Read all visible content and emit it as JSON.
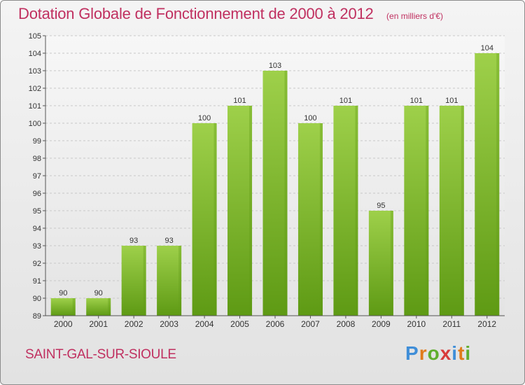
{
  "header": {
    "title": "Dotation Globale de Fonctionnement de 2000 à 2012",
    "subtitle": "(en milliers d'€)"
  },
  "footer": {
    "commune": "SAINT-GAL-SUR-SIOULE",
    "logo_text": "Proxiti",
    "logo_letters": [
      "P",
      "r",
      "o",
      "x",
      "i",
      "t",
      "i"
    ],
    "logo_colors": [
      "#3f8ed8",
      "#e07b1a",
      "#5fae2d",
      "#d83a3a",
      "#3f8ed8",
      "#e07b1a",
      "#5fae2d"
    ]
  },
  "colors": {
    "bar_light": "#9ed04a",
    "bar_dark": "#5e9a14",
    "grid": "#c8c8c8",
    "axis": "#555555",
    "accent": "#c03060"
  },
  "chart_data": {
    "type": "bar",
    "title": "Dotation Globale de Fonctionnement de 2000 à 2012",
    "subtitle": "(en milliers d'€)",
    "categories": [
      "2000",
      "2001",
      "2002",
      "2003",
      "2004",
      "2005",
      "2006",
      "2007",
      "2008",
      "2009",
      "2010",
      "2011",
      "2012"
    ],
    "values": [
      90,
      90,
      93,
      93,
      100,
      101,
      103,
      100,
      101,
      95,
      101,
      101,
      104
    ],
    "ylim": [
      89,
      105
    ],
    "yticks": [
      89,
      90,
      91,
      92,
      93,
      94,
      95,
      96,
      97,
      98,
      99,
      100,
      101,
      102,
      103,
      104,
      105
    ],
    "grid": true,
    "legend": "none"
  }
}
